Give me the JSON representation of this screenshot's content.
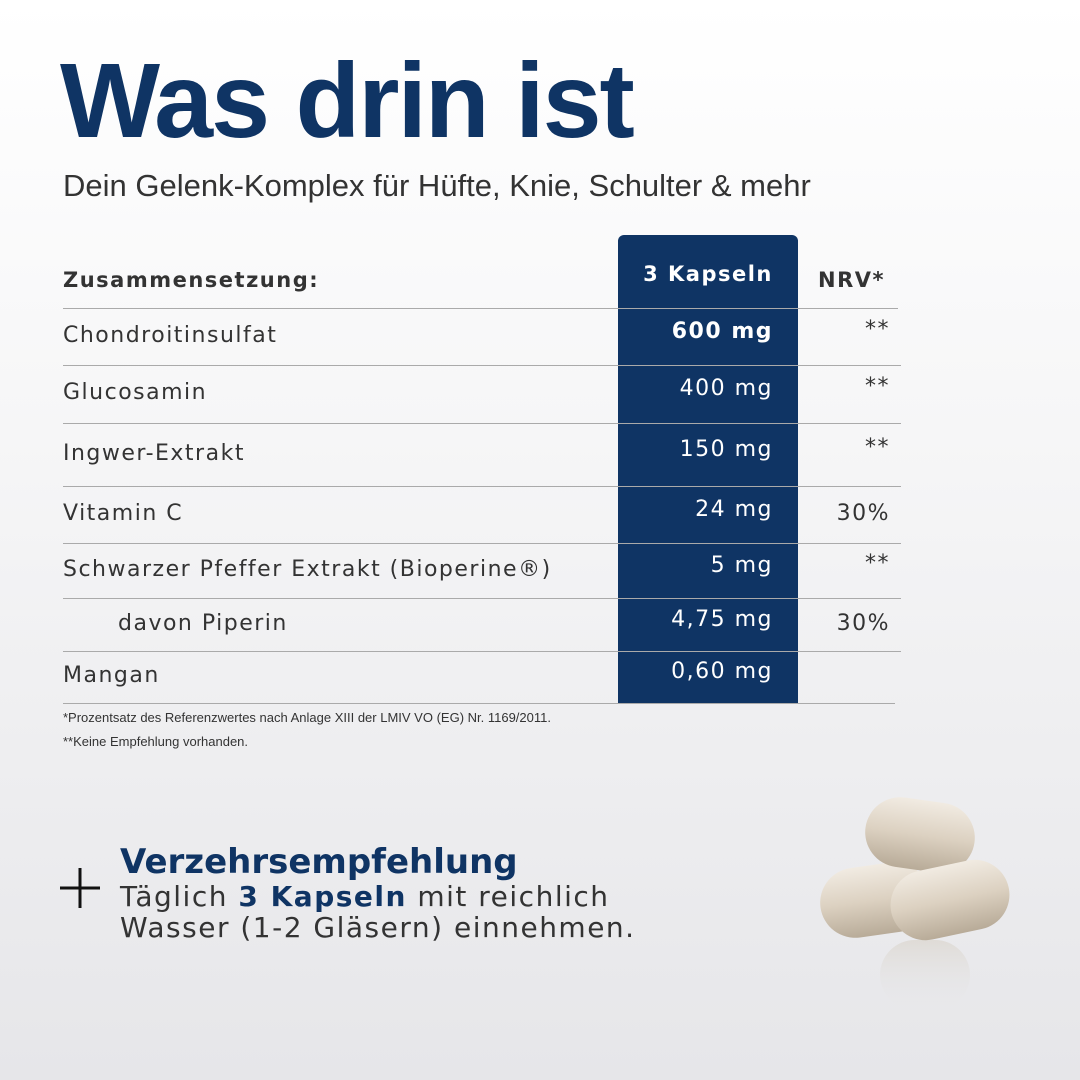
{
  "header": {
    "title": "Was drin ist",
    "subtitle": "Dein Gelenk-Komplex für Hüfte, Knie, Schulter & mehr"
  },
  "table": {
    "columns": [
      "Zusammensetzung:",
      "3 Kapseln",
      "NRV*"
    ],
    "rows": [
      {
        "name": "Chondroitinsulfat",
        "amount": "600 mg",
        "nrv": "**"
      },
      {
        "name": "Glucosamin",
        "amount": "400 mg",
        "nrv": "**"
      },
      {
        "name": "Ingwer-Extrakt",
        "amount": "150 mg",
        "nrv": "**"
      },
      {
        "name": "Vitamin C",
        "amount": "24 mg",
        "nrv": "30%"
      },
      {
        "name": "Schwarzer Pfeffer Extrakt (Bioperine®)",
        "amount": "5 mg",
        "nrv": "**"
      },
      {
        "name": "davon Piperin",
        "amount": "4,75 mg",
        "nrv": "30%"
      },
      {
        "name": "Mangan",
        "amount": "0,60 mg"
      }
    ]
  },
  "footnotes": [
    "*Prozentsatz des Referenzwertes nach Anlage XIII der LMIV VO  (EG) Nr. 1169/2011.",
    "**Keine Empfehlung vorhanden."
  ],
  "recommendation": {
    "title": "Verzehrsempfehlung",
    "text": [
      "Täglich",
      "3 Kapseln",
      "mit reichlich",
      "Wasser (1-2 Gläsern) einnehmen."
    ]
  }
}
